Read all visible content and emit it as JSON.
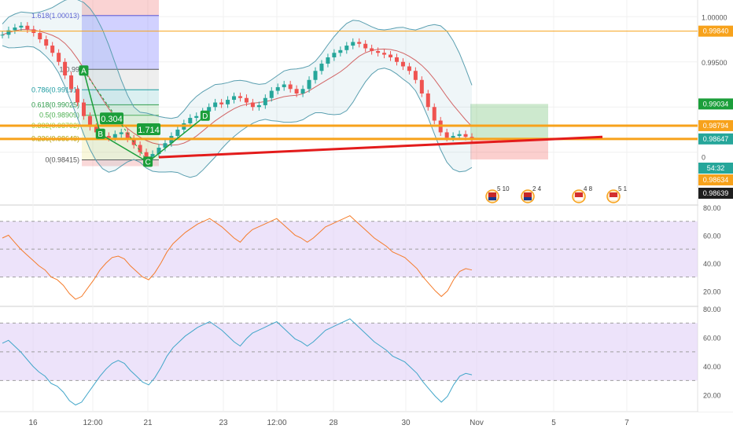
{
  "chart_data": [
    {
      "type": "candlestick",
      "role": "price",
      "ylim": [
        0.9795,
        1.0015
      ],
      "x_ticks": [
        "16",
        "12:00",
        "21",
        "23",
        "12:00",
        "28",
        "30",
        "Nov",
        "5",
        "7"
      ],
      "y_ticks": [
        "1.00000",
        "0.99500",
        "0"
      ],
      "price_labels": [
        {
          "value": 0.9984,
          "text": "0.99840",
          "color": "#f7a21b",
          "text_color": "#ffffff"
        },
        {
          "value": 0.99034,
          "text": "0.99034",
          "color": "#1b9e3a",
          "text_color": "#ffffff"
        },
        {
          "value": 0.98794,
          "text": "0.98794",
          "color": "#f7a21b",
          "text_color": "#ffffff"
        },
        {
          "value": 0.98647,
          "text": "0.98647",
          "color": "#26a69a",
          "text_color": "#ffffff"
        },
        {
          "value": 0.9862,
          "text": "54:32",
          "color": "#26a69a",
          "text_color": "#ffffff"
        },
        {
          "value": 0.98634,
          "text": "0.98634",
          "color": "#f7a21b",
          "text_color": "#ffffff"
        },
        {
          "value": 0.98639,
          "text": "0.98639",
          "color": "#1e1e1e",
          "text_color": "#ffffff"
        }
      ],
      "fib_levels": [
        {
          "label": "1.618(1.00013)",
          "value": 1.00013,
          "color": "#5b5bd6"
        },
        {
          "label": "1(0.99",
          "value": 0.99417,
          "color": "#555555"
        },
        {
          "label": "0.786(0.99191)",
          "value": 0.99191,
          "color": "#1a9aa0"
        },
        {
          "label": "0.618(0.99025)",
          "value": 0.99025,
          "color": "#2e9b4a"
        },
        {
          "label": "0.5(0.98909)",
          "value": 0.98909,
          "color": "#4caf50"
        },
        {
          "label": "0.382(0.98792)",
          "value": 0.98792,
          "color": "#9acd32"
        },
        {
          "label": "0.236(0.98648)",
          "value": 0.98648,
          "color": "#b0a000"
        },
        {
          "label": "0(0.98415)",
          "value": 0.98415,
          "color": "#555555"
        }
      ],
      "pattern_points": [
        {
          "label": "A",
          "x": 0.111,
          "value": 0.994
        },
        {
          "label": "B",
          "x": 0.135,
          "value": 0.987
        },
        {
          "label": "C",
          "x": 0.203,
          "value": 0.9839
        },
        {
          "label": "D",
          "x": 0.285,
          "value": 0.989
        }
      ],
      "pattern_ratios": [
        "0.304",
        "1.714"
      ],
      "horizontal_levels": [
        0.9984,
        0.98794,
        0.98647
      ],
      "trendline": {
        "color": "#e31b1b",
        "from": 0.98445,
        "to": 0.9867
      },
      "position_box": {
        "entry": 0.98647,
        "target": 0.99034,
        "stop": 0.9842
      },
      "close": [
        0.998,
        0.9985,
        0.9988,
        0.999,
        0.9986,
        0.9982,
        0.9975,
        0.9968,
        0.996,
        0.995,
        0.9935,
        0.992,
        0.9905,
        0.989,
        0.9878,
        0.9872,
        0.9868,
        0.9866,
        0.987,
        0.9872,
        0.9865,
        0.9858,
        0.985,
        0.9845,
        0.9848,
        0.9855,
        0.986,
        0.9868,
        0.9875,
        0.9882,
        0.9888,
        0.989,
        0.9895,
        0.99,
        0.9905,
        0.9903,
        0.9908,
        0.9912,
        0.991,
        0.9905,
        0.99,
        0.9902,
        0.991,
        0.9918,
        0.9922,
        0.9925,
        0.992,
        0.9915,
        0.992,
        0.993,
        0.994,
        0.9948,
        0.9955,
        0.996,
        0.9963,
        0.9968,
        0.9972,
        0.997,
        0.9965,
        0.9962,
        0.996,
        0.9958,
        0.9955,
        0.995,
        0.9945,
        0.994,
        0.993,
        0.9915,
        0.99,
        0.9885,
        0.9872,
        0.9866,
        0.9868,
        0.987,
        0.9867,
        0.9865
      ],
      "indicators": [
        "Bollinger Bands",
        "Fibonacci Retracement",
        "ABCD Pattern",
        "Long Position"
      ]
    },
    {
      "type": "line",
      "role": "oscillator-1",
      "ylim": [
        10,
        80
      ],
      "y_ticks": [
        "80.00",
        "60.00",
        "40.00",
        "20.00"
      ],
      "band": [
        30,
        70
      ],
      "color": "#f57c2b",
      "values": [
        58,
        60,
        55,
        50,
        46,
        42,
        38,
        35,
        30,
        28,
        24,
        18,
        14,
        16,
        22,
        28,
        35,
        40,
        44,
        45,
        43,
        38,
        34,
        30,
        28,
        33,
        40,
        48,
        54,
        58,
        62,
        65,
        68,
        70,
        72,
        69,
        66,
        62,
        58,
        55,
        60,
        64,
        66,
        68,
        70,
        72,
        68,
        64,
        60,
        58,
        55,
        58,
        62,
        66,
        68,
        70,
        72,
        74,
        70,
        66,
        62,
        58,
        55,
        52,
        48,
        46,
        44,
        40,
        36,
        30,
        25,
        20,
        16,
        20,
        28,
        34,
        36,
        35
      ]
    },
    {
      "type": "line",
      "role": "oscillator-2",
      "ylim": [
        10,
        80
      ],
      "y_ticks": [
        "80.00",
        "60.00",
        "40.00",
        "20.00"
      ],
      "band": [
        30,
        70
      ],
      "color": "#41a6c9",
      "values": [
        56,
        58,
        54,
        50,
        45,
        40,
        36,
        33,
        28,
        26,
        22,
        16,
        13,
        15,
        21,
        27,
        33,
        38,
        42,
        44,
        42,
        37,
        33,
        29,
        27,
        32,
        39,
        47,
        53,
        57,
        61,
        64,
        67,
        69,
        71,
        68,
        65,
        61,
        57,
        54,
        59,
        63,
        65,
        67,
        69,
        71,
        67,
        63,
        59,
        57,
        54,
        57,
        61,
        65,
        67,
        69,
        71,
        73,
        69,
        65,
        61,
        57,
        54,
        51,
        47,
        45,
        43,
        39,
        35,
        29,
        24,
        19,
        15,
        19,
        27,
        33,
        35,
        34
      ]
    }
  ],
  "events": [
    {
      "label": "5 10",
      "flag": "gb"
    },
    {
      "label": "2 4",
      "flag": "gb"
    },
    {
      "label": "4 8",
      "flag": "us"
    },
    {
      "label": "5 1",
      "flag": "us"
    }
  ],
  "colors": {
    "up": "#26a69a",
    "down": "#ef5350",
    "bb": "#5a9fb0",
    "basis": "#c62828",
    "axis_text": "#555555"
  }
}
